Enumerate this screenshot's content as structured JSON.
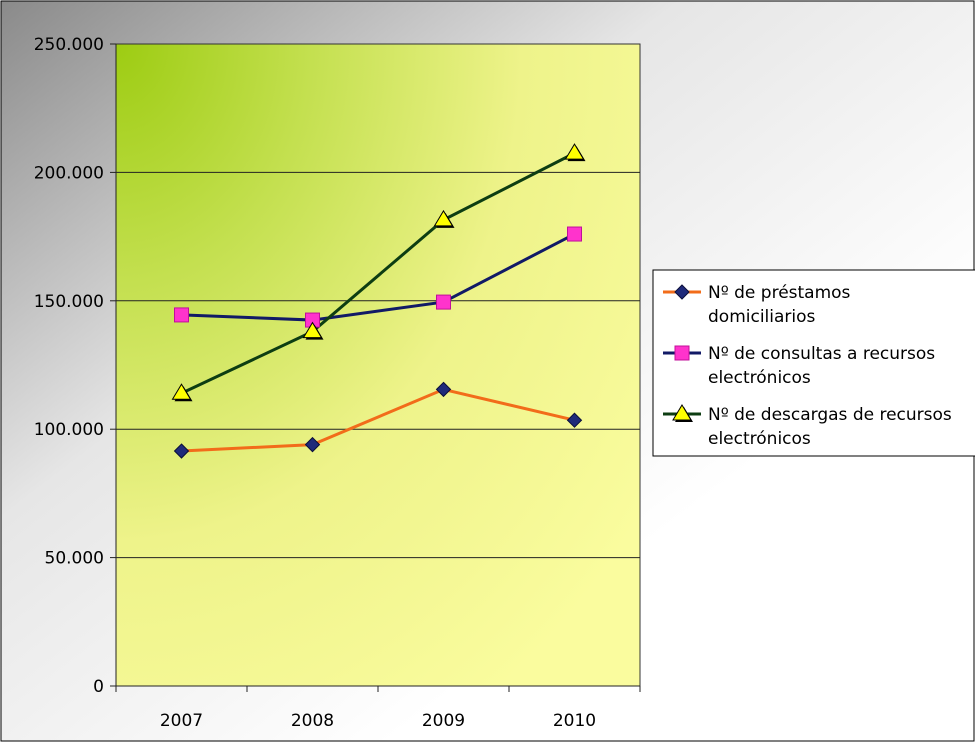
{
  "chart_data": {
    "type": "line",
    "title": "",
    "xlabel": "",
    "ylabel": "",
    "categories": [
      "2007",
      "2008",
      "2009",
      "2010"
    ],
    "ylim": [
      0,
      250000
    ],
    "y_ticks": [
      0,
      50000,
      100000,
      150000,
      200000,
      250000
    ],
    "y_tick_labels": [
      "0",
      "50.000",
      "100.000",
      "150.000",
      "200.000",
      "250.000"
    ],
    "grid": true,
    "legend_position": "right",
    "series": [
      {
        "name": "Nº de préstamos domiciliarios",
        "legend_lines": [
          "Nº de préstamos",
          "domiciliarios"
        ],
        "values": [
          91500,
          94000,
          115500,
          103500
        ],
        "line_color": "#f26c1a",
        "marker": "diamond",
        "marker_color": "#1f2a7a"
      },
      {
        "name": "Nº de consultas a recursos electrónicos",
        "legend_lines": [
          "Nº de consultas a recursos",
          "electrónicos"
        ],
        "values": [
          144500,
          142500,
          149500,
          176000
        ],
        "line_color": "#111a66",
        "marker": "square",
        "marker_color": "#ff33cc"
      },
      {
        "name": "Nº de descargas de recursos electrónicos",
        "legend_lines": [
          "Nº de descargas de recursos",
          "electrónicos"
        ],
        "values": [
          114000,
          138000,
          181500,
          207500
        ],
        "line_color": "#0d3d12",
        "marker": "triangle",
        "marker_color": "#ffff00"
      }
    ]
  }
}
